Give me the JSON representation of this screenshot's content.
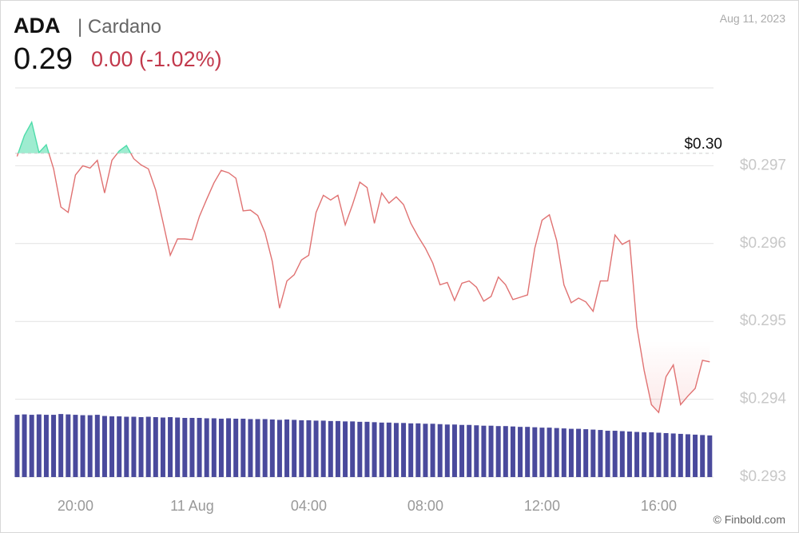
{
  "header": {
    "symbol": "ADA",
    "name": "| Cardano",
    "price": "0.29",
    "change": "0.00 (-1.02%)",
    "date": "Aug 11, 2023",
    "watermark": "© Finbold.com"
  },
  "chart_data": {
    "type": "line",
    "x": [
      "2023-08-10T18:00",
      "2023-08-10T18:15",
      "2023-08-10T18:30",
      "2023-08-10T18:45",
      "2023-08-10T19:00",
      "2023-08-10T19:15",
      "2023-08-10T19:30",
      "2023-08-10T19:45",
      "2023-08-10T20:00",
      "2023-08-10T20:15",
      "2023-08-10T20:30",
      "2023-08-10T20:45",
      "2023-08-10T21:00",
      "2023-08-10T21:15",
      "2023-08-10T21:30",
      "2023-08-10T21:45",
      "2023-08-10T22:00",
      "2023-08-10T22:15",
      "2023-08-10T22:30",
      "2023-08-10T22:45",
      "2023-08-10T23:00",
      "2023-08-10T23:15",
      "2023-08-10T23:30",
      "2023-08-10T23:45",
      "2023-08-11T00:00",
      "2023-08-11T00:15",
      "2023-08-11T00:30",
      "2023-08-11T00:45",
      "2023-08-11T01:00",
      "2023-08-11T01:15",
      "2023-08-11T01:30",
      "2023-08-11T01:45",
      "2023-08-11T02:00",
      "2023-08-11T02:15",
      "2023-08-11T02:30",
      "2023-08-11T02:45",
      "2023-08-11T03:00",
      "2023-08-11T03:15",
      "2023-08-11T03:30",
      "2023-08-11T03:45",
      "2023-08-11T04:00",
      "2023-08-11T04:15",
      "2023-08-11T04:30",
      "2023-08-11T04:45",
      "2023-08-11T05:00",
      "2023-08-11T05:15",
      "2023-08-11T05:30",
      "2023-08-11T05:45",
      "2023-08-11T06:00",
      "2023-08-11T06:15",
      "2023-08-11T06:30",
      "2023-08-11T06:45",
      "2023-08-11T07:00",
      "2023-08-11T07:15",
      "2023-08-11T07:30",
      "2023-08-11T07:45",
      "2023-08-11T08:00",
      "2023-08-11T08:15",
      "2023-08-11T08:30",
      "2023-08-11T08:45",
      "2023-08-11T09:00",
      "2023-08-11T09:15",
      "2023-08-11T09:30",
      "2023-08-11T09:45",
      "2023-08-11T10:00",
      "2023-08-11T10:15",
      "2023-08-11T10:30",
      "2023-08-11T10:45",
      "2023-08-11T11:00",
      "2023-08-11T11:15",
      "2023-08-11T11:30",
      "2023-08-11T11:45",
      "2023-08-11T12:00",
      "2023-08-11T12:15",
      "2023-08-11T12:30",
      "2023-08-11T12:45",
      "2023-08-11T13:00",
      "2023-08-11T13:15",
      "2023-08-11T13:30",
      "2023-08-11T13:45",
      "2023-08-11T14:00",
      "2023-08-11T14:15",
      "2023-08-11T14:30",
      "2023-08-11T14:45",
      "2023-08-11T15:00",
      "2023-08-11T15:15",
      "2023-08-11T15:30",
      "2023-08-11T15:45",
      "2023-08-11T16:00",
      "2023-08-11T16:15",
      "2023-08-11T16:30",
      "2023-08-11T16:45",
      "2023-08-11T17:00",
      "2023-08-11T17:15",
      "2023-08-11T17:30",
      "2023-08-11T17:45"
    ],
    "series": [
      {
        "color": "#e07272",
        "values": [
          0.29712,
          0.29739,
          0.29756,
          0.29717,
          0.29727,
          0.29696,
          0.29647,
          0.2964,
          0.29688,
          0.297,
          0.29697,
          0.29707,
          0.29665,
          0.29707,
          0.29719,
          0.29726,
          0.29709,
          0.29701,
          0.29696,
          0.29669,
          0.29628,
          0.29585,
          0.29606,
          0.29606,
          0.29605,
          0.29635,
          0.29657,
          0.29678,
          0.29694,
          0.29691,
          0.29684,
          0.29642,
          0.29643,
          0.29636,
          0.29614,
          0.29577,
          0.29517,
          0.29552,
          0.2956,
          0.29579,
          0.29585,
          0.2964,
          0.29662,
          0.29656,
          0.29662,
          0.29624,
          0.2965,
          0.29679,
          0.29672,
          0.29626,
          0.29665,
          0.29652,
          0.2966,
          0.2965,
          0.29626,
          0.29609,
          0.29594,
          0.29575,
          0.29547,
          0.2955,
          0.29527,
          0.29549,
          0.29552,
          0.29544,
          0.29526,
          0.29532,
          0.29557,
          0.29547,
          0.29528,
          0.29531,
          0.29534,
          0.29594,
          0.2963,
          0.29637,
          0.29604,
          0.29547,
          0.29524,
          0.2953,
          0.29525,
          0.29513,
          0.29552,
          0.29552,
          0.29611,
          0.29599,
          0.29604,
          0.29493,
          0.29437,
          0.29393,
          0.29383,
          0.29429,
          0.29444,
          0.29393,
          0.29404,
          0.29414,
          0.2945,
          0.29448
        ]
      },
      {
        "type": "bar",
        "axis": "y2",
        "color": "#4a4a9c",
        "values": [
          16.0,
          16.1,
          16.0,
          16.1,
          16.0,
          16.0,
          16.2,
          16.1,
          16.0,
          15.9,
          15.9,
          16.0,
          15.7,
          15.6,
          15.6,
          15.5,
          15.5,
          15.4,
          15.5,
          15.4,
          15.3,
          15.4,
          15.3,
          15.2,
          15.2,
          15.2,
          15.1,
          15.1,
          15.0,
          15.1,
          15.0,
          15.0,
          14.9,
          14.9,
          14.9,
          14.8,
          14.7,
          14.8,
          14.7,
          14.6,
          14.6,
          14.5,
          14.5,
          14.4,
          14.4,
          14.3,
          14.3,
          14.2,
          14.2,
          14.1,
          14.0,
          14.0,
          13.9,
          13.9,
          13.8,
          13.8,
          13.7,
          13.7,
          13.6,
          13.5,
          13.5,
          13.4,
          13.4,
          13.3,
          13.2,
          13.2,
          13.1,
          13.1,
          13.0,
          12.9,
          12.9,
          12.8,
          12.7,
          12.7,
          12.6,
          12.5,
          12.4,
          12.4,
          12.3,
          12.2,
          12.1,
          11.9,
          11.9,
          11.8,
          11.7,
          11.6,
          11.5,
          11.5,
          11.4,
          11.3,
          11.2,
          11.1,
          11.0,
          10.9,
          10.8,
          10.7
        ]
      }
    ],
    "reference": {
      "value": 0.29716,
      "label": "$0.30"
    },
    "above_color": "#4fdcaa",
    "below_color": "#f2a0a0",
    "xlim": [
      "2023-08-10T17:56",
      "2023-08-11T17:56"
    ],
    "xticks": [
      {
        "value": "2023-08-10T20:00",
        "label": "20:00"
      },
      {
        "value": "2023-08-11T00:00",
        "label": "11 Aug"
      },
      {
        "value": "2023-08-11T04:00",
        "label": "04:00"
      },
      {
        "value": "2023-08-11T08:00",
        "label": "08:00"
      },
      {
        "value": "2023-08-11T12:00",
        "label": "12:00"
      },
      {
        "value": "2023-08-11T16:00",
        "label": "16:00"
      }
    ],
    "ylim": [
      0.293,
      0.298
    ],
    "yticks": [
      {
        "value": 0.297,
        "label": "$0.297"
      },
      {
        "value": 0.296,
        "label": "$0.296"
      },
      {
        "value": 0.295,
        "label": "$0.295"
      },
      {
        "value": 0.294,
        "label": "$0.294"
      },
      {
        "value": 0.293,
        "label": "$0.293"
      }
    ],
    "y2lim": [
      0,
      100
    ],
    "grid": true
  }
}
